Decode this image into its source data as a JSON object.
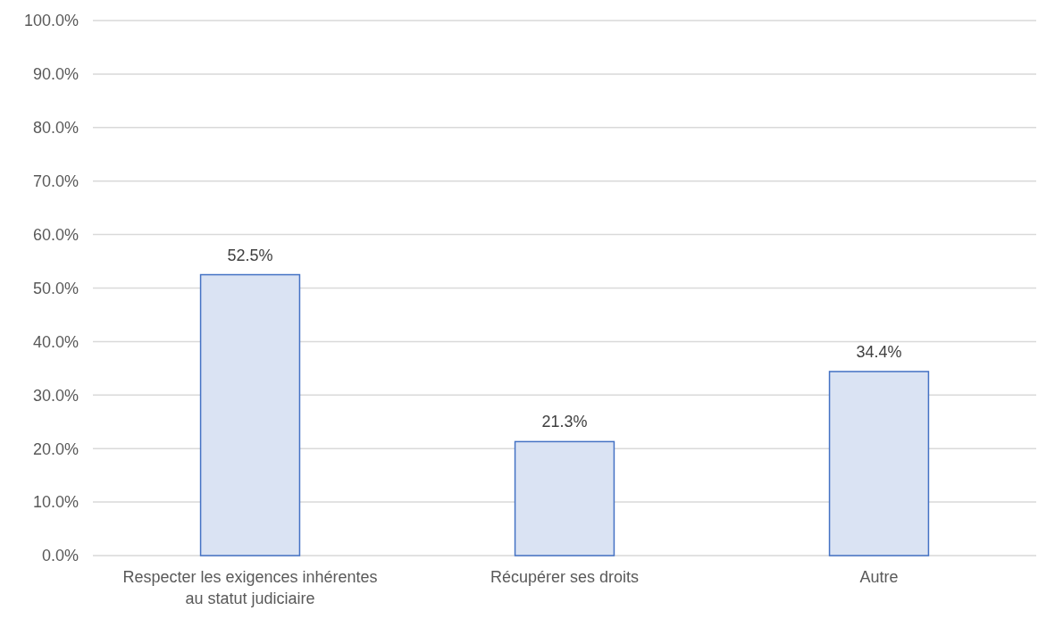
{
  "chart_data": {
    "type": "bar",
    "categories": [
      "Respecter les exigences inhérentes au statut judiciaire",
      "Récupérer ses droits",
      "Autre"
    ],
    "values": [
      52.5,
      21.3,
      34.4
    ],
    "color": "#dae3f3",
    "value_labels": [
      "52.5%",
      "21.3%",
      "34.4%"
    ],
    "ylim": [
      0,
      100
    ],
    "yticks": [
      {
        "value": 0,
        "label": "0.0%"
      },
      {
        "value": 10,
        "label": "10.0%"
      },
      {
        "value": 20,
        "label": "20.0%"
      },
      {
        "value": 30,
        "label": "30.0%"
      },
      {
        "value": 40,
        "label": "40.0%"
      },
      {
        "value": 50,
        "label": "50.0%"
      },
      {
        "value": 60,
        "label": "60.0%"
      },
      {
        "value": 70,
        "label": "70.0%"
      },
      {
        "value": 80,
        "label": "80.0%"
      },
      {
        "value": 90,
        "label": "90.0%"
      },
      {
        "value": 100,
        "label": "100.0%"
      }
    ],
    "grid": "y"
  }
}
